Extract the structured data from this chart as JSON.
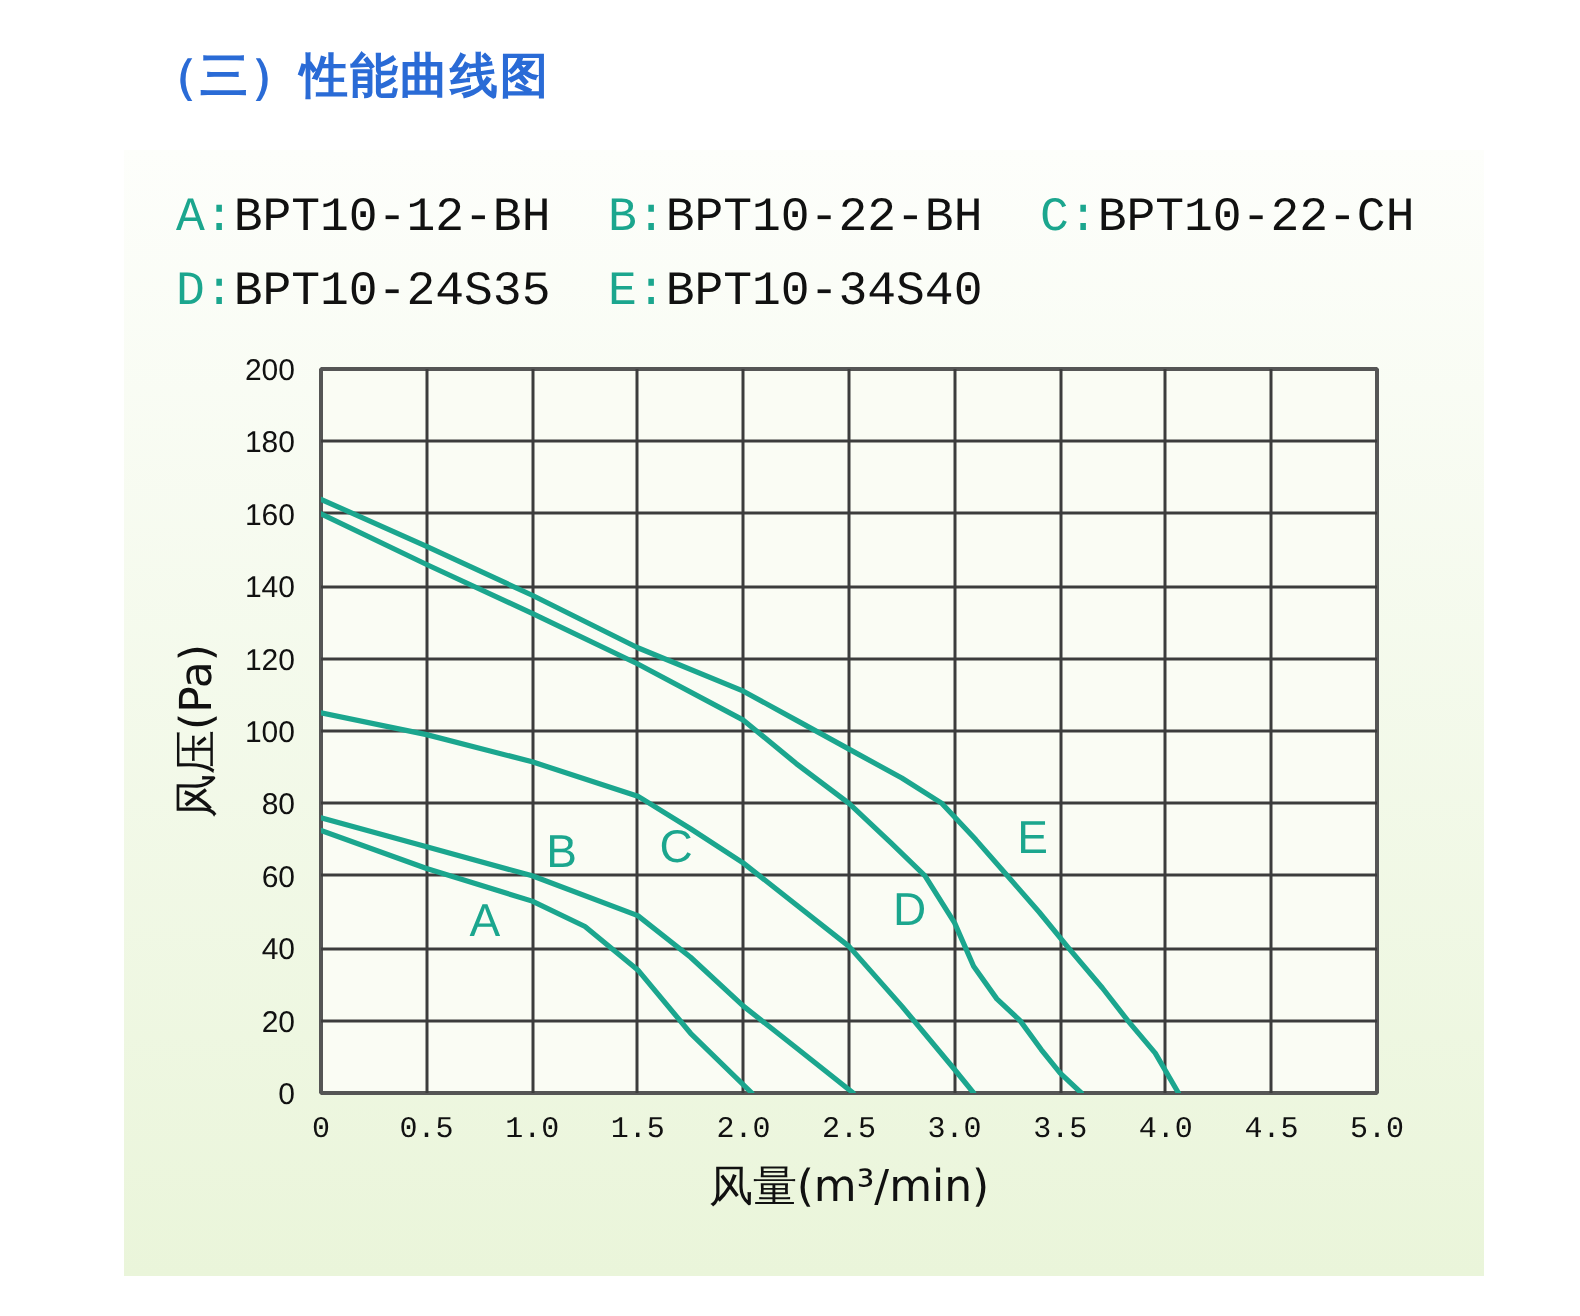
{
  "chart_data": {
    "type": "line",
    "title": "（三）性能曲线图",
    "xlabel": "风量(m³/min)",
    "ylabel": "风压(Pa)",
    "xlim": [
      0,
      5
    ],
    "ylim": [
      0,
      200
    ],
    "xticks": [
      0,
      0.5,
      {
        "value": 1,
        "label": "1.0"
      },
      1.5,
      {
        "value": 2,
        "label": "2.0"
      },
      2.5,
      {
        "value": 3,
        "label": "3.0"
      },
      3.5,
      {
        "value": 4,
        "label": "4.0"
      },
      4.5,
      {
        "value": 5,
        "label": "5.0"
      }
    ],
    "yticks": [
      0,
      20,
      40,
      60,
      80,
      100,
      120,
      140,
      160,
      180,
      200
    ],
    "grid": true,
    "line_style": "solid",
    "series": [
      {
        "name": "A",
        "color": "#1ba68e",
        "x": [
          0,
          0.5,
          1.0,
          1.25,
          1.5,
          1.75,
          2.04
        ],
        "values": [
          72.5,
          62,
          53,
          46,
          34,
          16.5,
          0
        ]
      },
      {
        "name": "B",
        "color": "#1ba68e",
        "x": [
          0,
          0.5,
          1.0,
          1.5,
          1.75,
          2.0,
          2.25,
          2.52
        ],
        "values": [
          76,
          68,
          60,
          49,
          37.5,
          24,
          12.5,
          0
        ]
      },
      {
        "name": "C",
        "color": "#1ba68e",
        "x": [
          0,
          0.5,
          1.0,
          1.5,
          1.75,
          2.0,
          2.25,
          2.5,
          2.75,
          3.0,
          3.09
        ],
        "values": [
          105,
          99,
          91.5,
          82,
          73,
          63.5,
          52,
          40.5,
          24,
          6.5,
          0
        ]
      },
      {
        "name": "D",
        "color": "#1ba68e",
        "x": [
          0,
          0.5,
          1.0,
          1.5,
          2.0,
          2.25,
          2.5,
          2.7,
          2.86,
          3.0,
          3.09,
          3.2,
          3.31,
          3.41,
          3.5,
          3.6
        ],
        "values": [
          160,
          146,
          132.5,
          118.5,
          103,
          91,
          80,
          69,
          60,
          47,
          35,
          26,
          20,
          12,
          5.5,
          0
        ]
      },
      {
        "name": "E",
        "color": "#1ba68e",
        "x": [
          0,
          0.5,
          1.0,
          1.5,
          2.0,
          2.25,
          2.5,
          2.75,
          2.94,
          3.1,
          3.25,
          3.4,
          3.54,
          3.7,
          3.82,
          3.95,
          4.06
        ],
        "values": [
          164,
          151,
          137.5,
          123,
          111,
          103,
          95,
          87,
          80,
          70,
          60,
          50,
          40,
          29,
          20,
          11,
          0
        ]
      }
    ],
    "annotations": [
      "A:BPT10-12-BH",
      "B:BPT10-22-BH",
      "C:BPT10-22-CH",
      "D:BPT10-24S35",
      "E:BPT10-34S40"
    ]
  }
}
